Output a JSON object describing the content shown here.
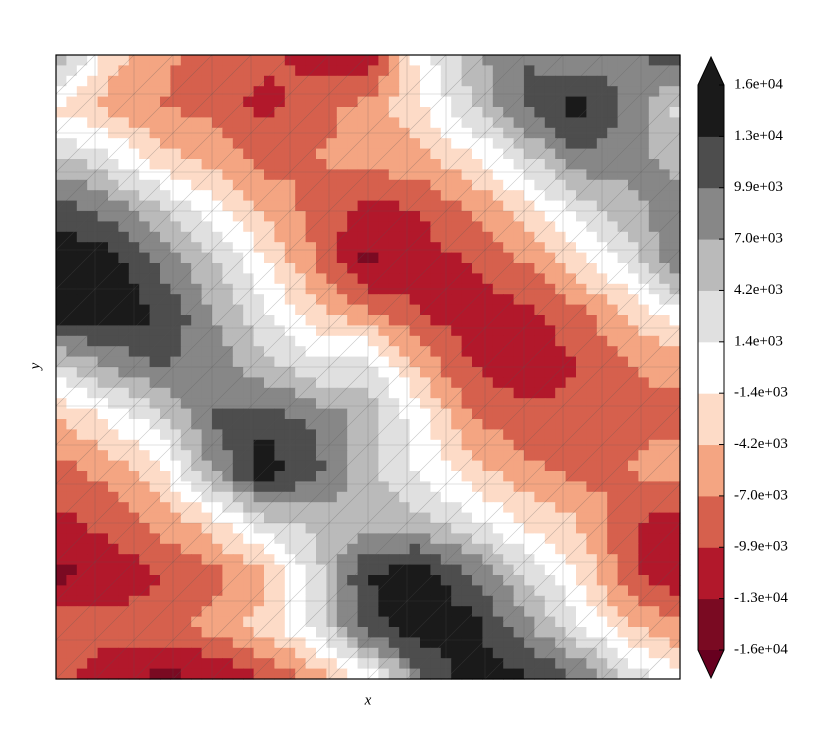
{
  "chart_data": {
    "type": "contourf",
    "xlabel": "x",
    "ylabel": "y",
    "z": [
      [
        8000,
        -3000,
        -6000,
        -9000,
        -9000,
        -11000,
        -12000,
        0,
        6000,
        10000,
        7000,
        9000,
        12000
      ],
      [
        -2000,
        -5000,
        -7000,
        -8000,
        -11000,
        -8000,
        -6000,
        -2000,
        4000,
        10000,
        15000,
        9000,
        3000
      ],
      [
        5000,
        2000,
        -3000,
        -5000,
        -8000,
        -7000,
        -6000,
        -5000,
        -2000,
        3000,
        9000,
        8000,
        6000
      ],
      [
        12000,
        9000,
        5000,
        0,
        -5000,
        -8000,
        -11000,
        -10000,
        -7000,
        -3000,
        2000,
        6000,
        9000
      ],
      [
        15000,
        15000,
        9000,
        5000,
        -1000,
        -7000,
        -14000,
        -11000,
        -10000,
        -7000,
        -3000,
        2000,
        10000
      ],
      [
        14000,
        15000,
        13000,
        7000,
        2000,
        -3000,
        -6000,
        -10000,
        -11000,
        -11000,
        -8000,
        -4000,
        0
      ],
      [
        3000,
        7000,
        10000,
        9000,
        5000,
        2000,
        3000,
        -5000,
        -10000,
        -12000,
        -10000,
        -7000,
        -6000
      ],
      [
        -5000,
        -1000,
        3000,
        10000,
        12000,
        9000,
        6000,
        0,
        -7000,
        -9000,
        -9000,
        -8000,
        -8000
      ],
      [
        -8000,
        -6000,
        -2000,
        7000,
        15000,
        11000,
        5000,
        1000,
        -3000,
        -6000,
        -8000,
        -7000,
        -5000
      ],
      [
        -11000,
        -9000,
        -6000,
        -3000,
        3000,
        5000,
        6000,
        5000,
        2000,
        -2000,
        -4000,
        -9000,
        -12000
      ],
      [
        -14000,
        -12000,
        -10000,
        -8000,
        -5000,
        3000,
        13000,
        15000,
        10000,
        4000,
        -1000,
        -9000,
        -13000
      ],
      [
        -7000,
        -9000,
        -8000,
        -6000,
        -3000,
        2000,
        12000,
        15000,
        14000,
        8000,
        2000,
        -4000,
        -6000
      ],
      [
        -9000,
        -12000,
        -14000,
        -13000,
        -10000,
        -6000,
        -1000,
        9000,
        15000,
        14000,
        10000,
        4000,
        -1000
      ]
    ],
    "levels": [
      {
        "value": -16000,
        "label": "-1.6e+04"
      },
      {
        "value": -13000,
        "label": "-1.3e+04"
      },
      {
        "value": -9900,
        "label": "-9.9e+03"
      },
      {
        "value": -7000,
        "label": "-7.0e+03"
      },
      {
        "value": -4200,
        "label": "-4.2e+03"
      },
      {
        "value": -1400,
        "label": "-1.4e+03"
      },
      {
        "value": 1400,
        "label": "1.4e+03"
      },
      {
        "value": 4200,
        "label": "4.2e+03"
      },
      {
        "value": 7000,
        "label": "7.0e+03"
      },
      {
        "value": 9900,
        "label": "9.9e+03"
      },
      {
        "value": 13000,
        "label": "1.3e+04"
      },
      {
        "value": 16000,
        "label": "1.6e+04"
      }
    ],
    "colors": [
      "#7a0a22",
      "#b2182b",
      "#d6604d",
      "#f4a582",
      "#fddbc7",
      "#ffffff",
      "#e0e0e0",
      "#bababa",
      "#878787",
      "#4d4d4d",
      "#1a1a1a"
    ],
    "extend_colors": [
      "#67001f",
      "#1a1a1a"
    ]
  }
}
